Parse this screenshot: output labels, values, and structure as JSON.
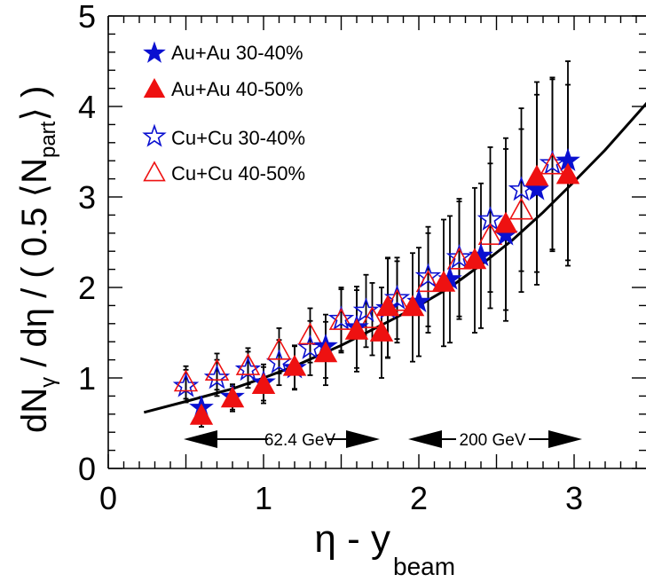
{
  "chart_data": {
    "type": "scatter",
    "xlabel_main": "η - y",
    "xlabel_sub": "beam",
    "ylabel_a": "dN",
    "ylabel_gamma": "γ",
    "ylabel_b": " / dη / ( 0.5 ⟨N",
    "ylabel_part": "part",
    "ylabel_c": "⟩ )",
    "xlim": [
      0,
      3.5
    ],
    "ylim": [
      0,
      5
    ],
    "x_ticks": [
      "0",
      "1",
      "2",
      "3"
    ],
    "y_ticks": [
      "0",
      "1",
      "2",
      "3",
      "4",
      "5"
    ],
    "grid": false,
    "legend_position": "top-left",
    "annotations": {
      "low_energy": "62.4 GeV",
      "high_energy": "200 GeV"
    },
    "colors": {
      "blue": "#0a10d0",
      "red": "#ee1111",
      "axis": "#000000"
    },
    "fit_curve": {
      "x": [
        0.23,
        0.5,
        0.8,
        1.0,
        1.2,
        1.5,
        1.8,
        2.0,
        2.2,
        2.4,
        2.6,
        2.8,
        3.0,
        3.2,
        3.5
      ],
      "y": [
        0.62,
        0.74,
        0.88,
        1.0,
        1.13,
        1.36,
        1.62,
        1.8,
        2.0,
        2.25,
        2.52,
        2.83,
        3.17,
        3.52,
        4.1
      ]
    },
    "series": [
      {
        "name": "Au+Au 30-40%",
        "marker": "star",
        "filled": true,
        "color": "#0a10d0",
        "points": [
          {
            "x": 0.6,
            "y": 0.67,
            "err": 0.12
          },
          {
            "x": 0.8,
            "y": 0.79,
            "err": 0.14
          },
          {
            "x": 1.0,
            "y": 0.95,
            "err": 0.2
          },
          {
            "x": 1.2,
            "y": 1.11,
            "err": 0.24
          },
          {
            "x": 1.4,
            "y": 1.35,
            "err": 0.35
          },
          {
            "x": 1.6,
            "y": 1.56,
            "err": 0.45
          },
          {
            "x": 1.8,
            "y": 1.77,
            "err": 0.55
          },
          {
            "x": 2.0,
            "y": 1.84,
            "err": 0.6
          },
          {
            "x": 2.2,
            "y": 2.09,
            "err": 0.7
          },
          {
            "x": 2.4,
            "y": 2.35,
            "err": 0.8
          },
          {
            "x": 2.56,
            "y": 2.58,
            "err": 0.95
          },
          {
            "x": 2.76,
            "y": 3.08,
            "err": 1.05
          },
          {
            "x": 2.96,
            "y": 3.4,
            "err": 1.1
          }
        ]
      },
      {
        "name": "Au+Au 40-50%",
        "marker": "triangle",
        "filled": true,
        "color": "#ee1111",
        "points": [
          {
            "x": 0.6,
            "y": 0.58,
            "err": 0.12
          },
          {
            "x": 0.8,
            "y": 0.77,
            "err": 0.14
          },
          {
            "x": 1.0,
            "y": 0.92,
            "err": 0.2
          },
          {
            "x": 1.2,
            "y": 1.12,
            "err": 0.24
          },
          {
            "x": 1.4,
            "y": 1.27,
            "err": 0.35
          },
          {
            "x": 1.6,
            "y": 1.52,
            "err": 0.45
          },
          {
            "x": 1.76,
            "y": 1.5,
            "err": 0.5
          },
          {
            "x": 1.8,
            "y": 1.78,
            "err": 0.55
          },
          {
            "x": 1.96,
            "y": 1.78,
            "err": 0.6
          },
          {
            "x": 2.16,
            "y": 2.05,
            "err": 0.7
          },
          {
            "x": 2.36,
            "y": 2.3,
            "err": 0.8
          },
          {
            "x": 2.56,
            "y": 2.7,
            "err": 0.95
          },
          {
            "x": 2.76,
            "y": 3.22,
            "err": 1.05
          },
          {
            "x": 2.96,
            "y": 3.24,
            "err": 1.0
          }
        ]
      },
      {
        "name": "Cu+Cu 30-40%",
        "marker": "star",
        "filled": false,
        "color": "#0a10d0",
        "points": [
          {
            "x": 0.5,
            "y": 0.91,
            "err": 0.18
          },
          {
            "x": 0.7,
            "y": 1.0,
            "err": 0.2
          },
          {
            "x": 0.9,
            "y": 1.09,
            "err": 0.2
          },
          {
            "x": 1.1,
            "y": 1.17,
            "err": 0.25
          },
          {
            "x": 1.3,
            "y": 1.33,
            "err": 0.3
          },
          {
            "x": 1.5,
            "y": 1.65,
            "err": 0.35
          },
          {
            "x": 1.66,
            "y": 1.74,
            "err": 0.4
          },
          {
            "x": 1.86,
            "y": 1.88,
            "err": 0.45
          },
          {
            "x": 2.06,
            "y": 2.12,
            "err": 0.55
          },
          {
            "x": 2.26,
            "y": 2.33,
            "err": 0.65
          },
          {
            "x": 2.46,
            "y": 2.75,
            "err": 0.8
          },
          {
            "x": 2.66,
            "y": 3.08,
            "err": 0.9
          },
          {
            "x": 2.86,
            "y": 3.37,
            "err": 0.95
          }
        ]
      },
      {
        "name": "Cu+Cu 40-50%",
        "marker": "triangle",
        "filled": false,
        "color": "#ee1111",
        "points": [
          {
            "x": 0.5,
            "y": 0.95,
            "err": 0.18
          },
          {
            "x": 0.7,
            "y": 1.07,
            "err": 0.2
          },
          {
            "x": 0.9,
            "y": 1.13,
            "err": 0.2
          },
          {
            "x": 1.1,
            "y": 1.3,
            "err": 0.25
          },
          {
            "x": 1.3,
            "y": 1.47,
            "err": 0.3
          },
          {
            "x": 1.5,
            "y": 1.63,
            "err": 0.35
          },
          {
            "x": 1.7,
            "y": 1.65,
            "err": 0.4
          },
          {
            "x": 1.86,
            "y": 1.84,
            "err": 0.45
          },
          {
            "x": 2.06,
            "y": 2.05,
            "err": 0.55
          },
          {
            "x": 2.26,
            "y": 2.3,
            "err": 0.65
          },
          {
            "x": 2.46,
            "y": 2.57,
            "err": 0.8
          },
          {
            "x": 2.66,
            "y": 2.85,
            "err": 0.9
          },
          {
            "x": 2.86,
            "y": 3.35,
            "err": 0.95
          }
        ]
      }
    ]
  }
}
